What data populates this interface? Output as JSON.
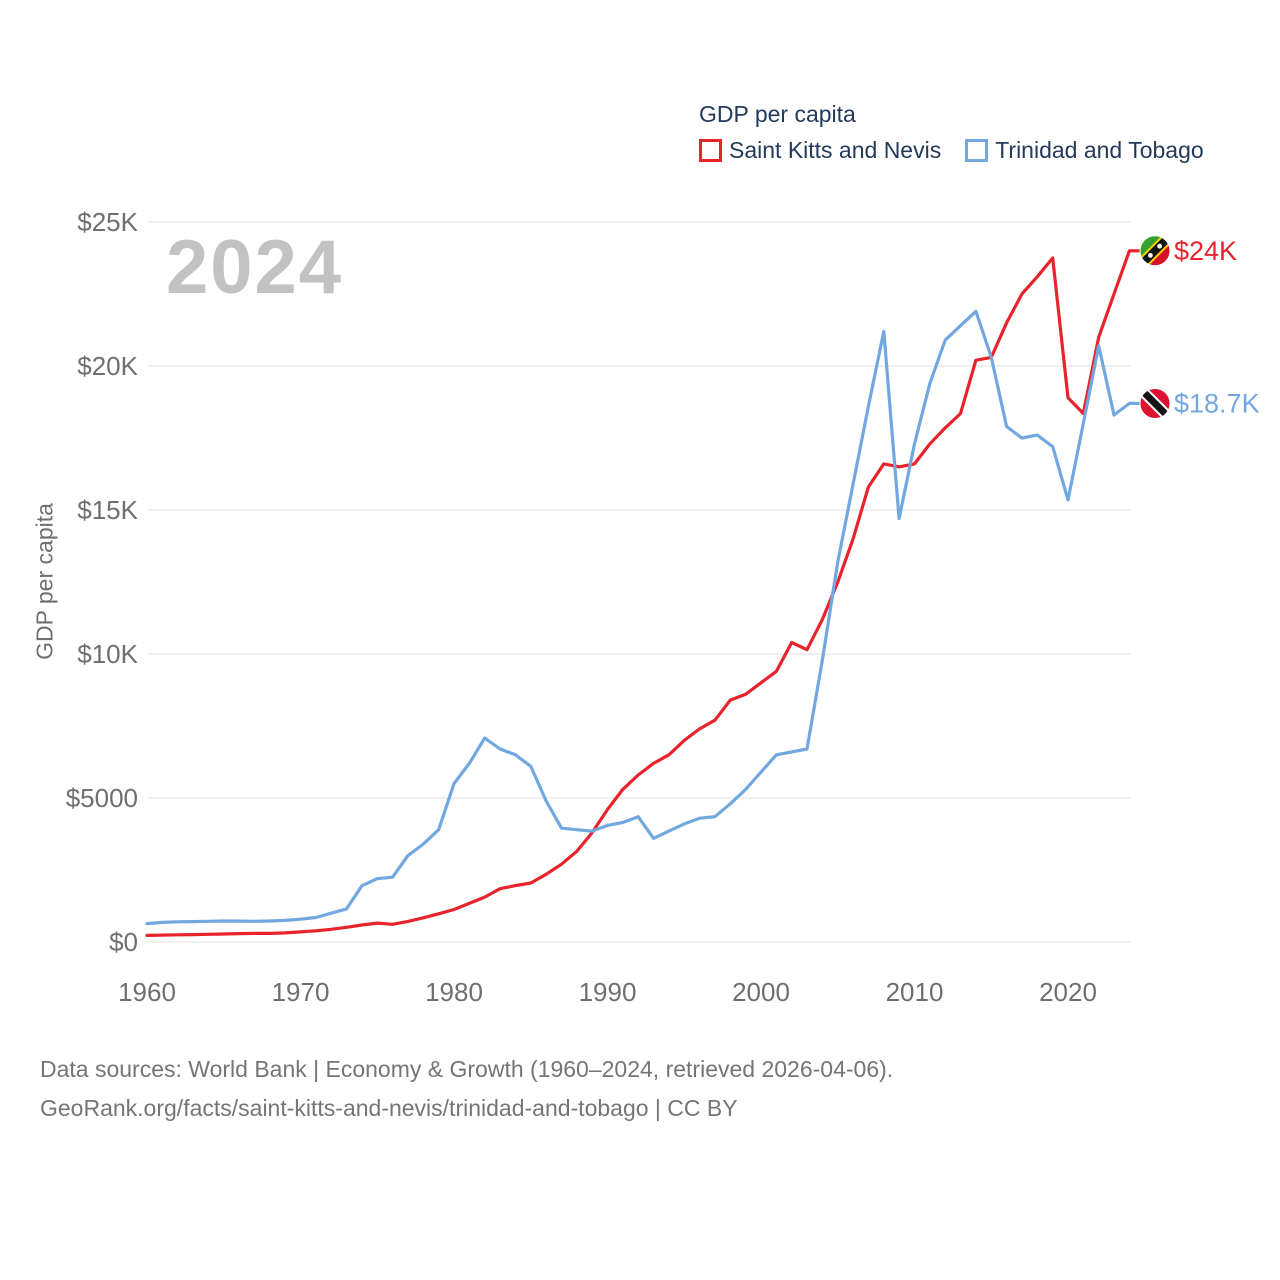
{
  "watermark_year": "2024",
  "legend": {
    "title": "GDP per capita",
    "items": [
      {
        "label": "Saint Kitts and Nevis",
        "color": "#e8232b"
      },
      {
        "label": "Trinidad and Tobago",
        "color": "#72a7e0"
      }
    ]
  },
  "y_axis_title": "GDP per capita",
  "footer": {
    "line1": "Data sources: World Bank | Economy & Growth (1960–2024, retrieved 2026-04-06).",
    "line2": "GeoRank.org/facts/saint-kitts-and-nevis/trinidad-and-tobago | CC BY"
  },
  "chart_data": {
    "type": "line",
    "title": "GDP per capita",
    "ylabel": "GDP per capita",
    "xlim": [
      1960,
      2024
    ],
    "ylim": [
      0,
      25000
    ],
    "grid": "horizontal",
    "legend_position": "top-right",
    "y_ticks": [
      {
        "v": 0,
        "label": "$0"
      },
      {
        "v": 5000,
        "label": "$5000"
      },
      {
        "v": 10000,
        "label": "$10K"
      },
      {
        "v": 15000,
        "label": "$15K"
      },
      {
        "v": 20000,
        "label": "$20K"
      },
      {
        "v": 25000,
        "label": "$25K"
      }
    ],
    "x_ticks": [
      {
        "v": 1960,
        "label": "1960"
      },
      {
        "v": 1970,
        "label": "1970"
      },
      {
        "v": 1980,
        "label": "1980"
      },
      {
        "v": 1990,
        "label": "1990"
      },
      {
        "v": 2000,
        "label": "2000"
      },
      {
        "v": 2010,
        "label": "2010"
      },
      {
        "v": 2020,
        "label": "2020"
      }
    ],
    "x_start_year": 1960,
    "series": [
      {
        "name": "Saint Kitts and Nevis",
        "color": "#e8232b",
        "flag": "saint-kitts-and-nevis-flag",
        "end_label": "$24K",
        "values": [
          230,
          240,
          250,
          258,
          268,
          278,
          290,
          300,
          298,
          315,
          350,
          390,
          440,
          510,
          590,
          655,
          615,
          715,
          840,
          980,
          1130,
          1340,
          1560,
          1850,
          1960,
          2050,
          2350,
          2700,
          3150,
          3800,
          4600,
          5300,
          5800,
          6200,
          6500,
          7000,
          7400,
          7700,
          8400,
          8600,
          9000,
          9400,
          10400,
          10150,
          11200,
          12500,
          14000,
          15800,
          16600,
          16500,
          16600,
          17300,
          17850,
          18350,
          20200,
          20300,
          21500,
          22500,
          23100,
          23750,
          18900,
          18350,
          21000,
          22500,
          24000
        ]
      },
      {
        "name": "Trinidad and Tobago",
        "color": "#72a7e0",
        "flag": "trinidad-and-tobago-flag",
        "end_label": "$18.7K",
        "values": [
          640,
          680,
          700,
          710,
          720,
          730,
          725,
          720,
          730,
          750,
          790,
          850,
          1000,
          1150,
          1950,
          2200,
          2250,
          3000,
          3400,
          3900,
          5500,
          6200,
          7080,
          6700,
          6500,
          6100,
          4900,
          3950,
          3900,
          3850,
          4050,
          4150,
          4350,
          3600,
          3850,
          4100,
          4300,
          4350,
          4800,
          5300,
          5900,
          6500,
          6600,
          6700,
          9800,
          13200,
          15900,
          18600,
          21200,
          14700,
          17300,
          19400,
          20900,
          21400,
          21900,
          20300,
          17900,
          17500,
          17600,
          17200,
          15350,
          18000,
          20700,
          18300,
          18700
        ]
      }
    ]
  }
}
